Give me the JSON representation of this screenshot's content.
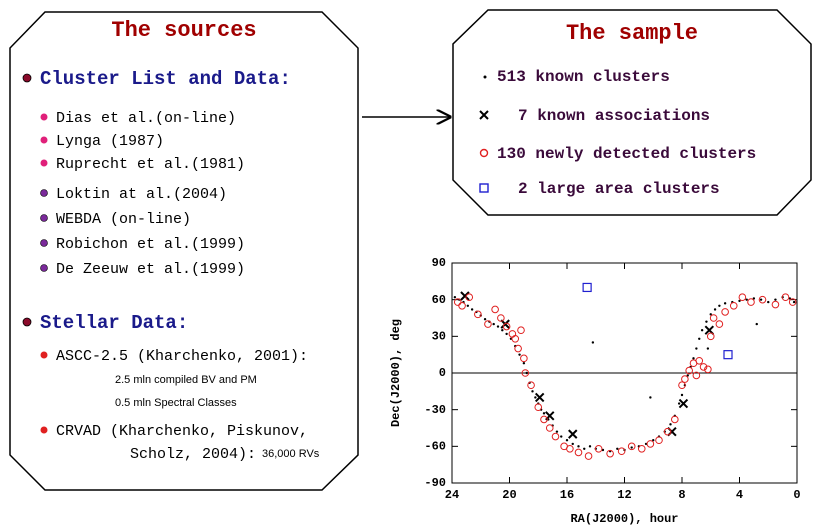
{
  "sources": {
    "title": "The sources",
    "cluster_list": {
      "heading": "Cluster List and Data:",
      "items": [
        "Dias et al.(on-line)",
        "Lynga (1987)",
        "Ruprecht et al.(1981)",
        "Loktin at al.(2004)",
        "WEBDA (on-line)",
        "Robichon et al.(1999)",
        "De Zeeuw et al.(1999)"
      ]
    },
    "stellar_data": {
      "heading": "Stellar Data:",
      "items": [
        {
          "lines": [
            "ASCC-2.5 (Kharchenko, 2001):"
          ],
          "notes": [
            "2.5 mln compiled BV and PM",
            "0.5 mln Spectral Classes"
          ]
        },
        {
          "lines": [
            "CRVAD (Kharchenko, Piskunov,",
            "Scholz, 2004):"
          ],
          "notes": [
            "36,000 RVs"
          ]
        }
      ]
    }
  },
  "sample": {
    "title": "The sample",
    "items": [
      "513 known clusters",
      "7 known associations",
      "130 newly detected clusters",
      "2 large area clusters"
    ]
  },
  "chart_data": {
    "type": "scatter",
    "xlabel": "RA(J2000), hour",
    "ylabel": "Dec(J2000), deg",
    "xlim": [
      24,
      0
    ],
    "ylim": [
      -90,
      90
    ],
    "xticks": [
      24,
      20,
      16,
      12,
      8,
      4,
      0
    ],
    "yticks": [
      -90,
      -60,
      -30,
      0,
      30,
      60,
      90
    ],
    "hline": 0,
    "series": [
      {
        "marker": "dot",
        "color": "#000000",
        "x": [
          23.8,
          23.5,
          23.2,
          22.9,
          22.6,
          22.3,
          22,
          21.7,
          21.4,
          21.1,
          20.8,
          20.5,
          20.2,
          19.9,
          19.6,
          19.3,
          19,
          18.8,
          18.6,
          18.4,
          18.2,
          18,
          17.8,
          17.6,
          17.3,
          17,
          16.7,
          16.4,
          16,
          15.6,
          15.2,
          14.8,
          14.4,
          14,
          13.5,
          13,
          12.5,
          12,
          11.5,
          11,
          10.5,
          10,
          9.6,
          9.2,
          8.8,
          8.5,
          8.2,
          8,
          7.8,
          7.6,
          7.4,
          7.2,
          7,
          6.8,
          6.6,
          6.3,
          6,
          5.7,
          5.4,
          5,
          4.5,
          4,
          3.5,
          3,
          2.5,
          2,
          1.5,
          1,
          0.5,
          0.2,
          14.2,
          10.2,
          6.2,
          2.8
        ],
        "y": [
          62,
          60,
          58,
          55,
          52,
          50,
          47,
          44,
          42,
          40,
          38,
          35,
          32,
          28,
          22,
          15,
          8,
          0,
          -8,
          -15,
          -20,
          -25,
          -30,
          -33,
          -38,
          -43,
          -48,
          -52,
          -55,
          -58,
          -60,
          -62,
          -60,
          -62,
          -63,
          -64,
          -62,
          -63,
          -61,
          -60,
          -58,
          -55,
          -52,
          -48,
          -42,
          -35,
          -25,
          -18,
          -10,
          -2,
          5,
          12,
          20,
          28,
          35,
          42,
          48,
          52,
          55,
          57,
          58,
          59,
          60,
          61,
          60,
          58,
          60,
          62,
          61,
          58,
          25,
          -20,
          20,
          40
        ]
      },
      {
        "marker": "cross",
        "color": "#000000",
        "x": [
          23.1,
          20.3,
          17.9,
          17.2,
          15.6,
          8.7,
          7.9,
          6.1
        ],
        "y": [
          63,
          40,
          -20,
          -35,
          -50,
          -48,
          -25,
          35
        ]
      },
      {
        "marker": "circle",
        "color": "#e02020",
        "x": [
          23.6,
          23.3,
          22.8,
          22.2,
          21.5,
          21,
          20.6,
          20.2,
          19.8,
          19.6,
          19.4,
          19.2,
          19,
          18.9,
          18.5,
          18,
          17.6,
          17.2,
          16.8,
          16.2,
          15.8,
          15.2,
          14.5,
          13.8,
          13,
          12.2,
          11.5,
          10.8,
          10.2,
          9.6,
          9,
          8.5,
          8,
          7.8,
          7.5,
          7.2,
          7,
          6.8,
          6.5,
          6.2,
          6,
          5.8,
          5.4,
          5,
          4.4,
          3.8,
          3.2,
          2.4,
          1.5,
          0.8,
          0.3
        ],
        "y": [
          58,
          55,
          62,
          48,
          40,
          52,
          45,
          38,
          32,
          28,
          20,
          35,
          12,
          0,
          -10,
          -28,
          -38,
          -45,
          -52,
          -60,
          -62,
          -65,
          -68,
          -62,
          -66,
          -64,
          -60,
          -62,
          -58,
          -55,
          -48,
          -38,
          -10,
          -5,
          2,
          8,
          -2,
          10,
          5,
          3,
          30,
          45,
          40,
          50,
          55,
          62,
          58,
          60,
          56,
          62,
          58
        ]
      },
      {
        "marker": "square",
        "color": "#2020d0",
        "x": [
          14.6,
          4.8
        ],
        "y": [
          70,
          15
        ]
      }
    ]
  }
}
